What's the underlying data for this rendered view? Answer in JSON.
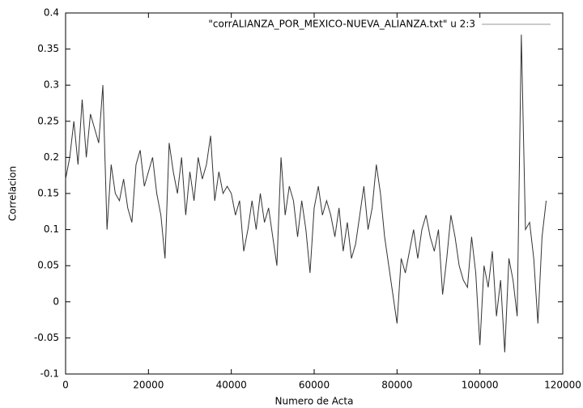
{
  "chart_data": {
    "type": "line",
    "xlabel": "Numero de Acta",
    "ylabel": "Correlacion",
    "x": [
      0,
      1000,
      2000,
      3000,
      4000,
      5000,
      6000,
      7000,
      8000,
      9000,
      10000,
      11000,
      12000,
      13000,
      14000,
      15000,
      16000,
      17000,
      18000,
      19000,
      20000,
      21000,
      22000,
      23000,
      24000,
      25000,
      26000,
      27000,
      28000,
      29000,
      30000,
      31000,
      32000,
      33000,
      34000,
      35000,
      36000,
      37000,
      38000,
      39000,
      40000,
      41000,
      42000,
      43000,
      44000,
      45000,
      46000,
      47000,
      48000,
      49000,
      50000,
      51000,
      52000,
      53000,
      54000,
      55000,
      56000,
      57000,
      58000,
      59000,
      60000,
      61000,
      62000,
      63000,
      64000,
      65000,
      66000,
      67000,
      68000,
      69000,
      70000,
      71000,
      72000,
      73000,
      74000,
      75000,
      76000,
      77000,
      78000,
      79000,
      80000,
      81000,
      82000,
      83000,
      84000,
      85000,
      86000,
      87000,
      88000,
      89000,
      90000,
      91000,
      92000,
      93000,
      94000,
      95000,
      96000,
      97000,
      98000,
      99000,
      100000,
      101000,
      102000,
      103000,
      104000,
      105000,
      106000,
      107000,
      108000,
      109000,
      110000,
      111000,
      112000,
      113000,
      114000,
      115000,
      116000
    ],
    "series": [
      {
        "name": "\"corrALIANZA_POR_MEXICO-NUEVA_ALIANZA.txt\" u 2:3",
        "color": "#333333",
        "values": [
          0.17,
          0.2,
          0.25,
          0.19,
          0.28,
          0.2,
          0.26,
          0.24,
          0.22,
          0.3,
          0.1,
          0.19,
          0.15,
          0.14,
          0.17,
          0.13,
          0.11,
          0.19,
          0.21,
          0.16,
          0.18,
          0.2,
          0.15,
          0.12,
          0.06,
          0.22,
          0.18,
          0.15,
          0.2,
          0.12,
          0.18,
          0.14,
          0.2,
          0.17,
          0.19,
          0.23,
          0.14,
          0.18,
          0.15,
          0.16,
          0.15,
          0.12,
          0.14,
          0.07,
          0.1,
          0.14,
          0.1,
          0.15,
          0.11,
          0.13,
          0.09,
          0.05,
          0.2,
          0.12,
          0.16,
          0.14,
          0.09,
          0.14,
          0.1,
          0.04,
          0.13,
          0.16,
          0.12,
          0.14,
          0.12,
          0.09,
          0.13,
          0.07,
          0.11,
          0.06,
          0.08,
          0.12,
          0.16,
          0.1,
          0.13,
          0.19,
          0.15,
          0.09,
          0.05,
          0.01,
          -0.03,
          0.06,
          0.04,
          0.07,
          0.1,
          0.06,
          0.1,
          0.12,
          0.09,
          0.07,
          0.1,
          0.01,
          0.06,
          0.12,
          0.09,
          0.05,
          0.03,
          0.02,
          0.09,
          0.04,
          -0.06,
          0.05,
          0.02,
          0.07,
          -0.02,
          0.03,
          -0.07,
          0.06,
          0.03,
          -0.02,
          0.37,
          0.1,
          0.11,
          0.06,
          -0.03,
          0.09,
          0.14
        ]
      }
    ],
    "legend_color": "#999999",
    "xlim": [
      0,
      120000
    ],
    "xticks": [
      0,
      20000,
      40000,
      60000,
      80000,
      100000,
      120000
    ],
    "ylim": [
      -0.1,
      0.4
    ],
    "yticks": [
      -0.1,
      -0.05,
      0,
      0.05,
      0.1,
      0.15,
      0.2,
      0.25,
      0.3,
      0.35,
      0.4
    ]
  }
}
